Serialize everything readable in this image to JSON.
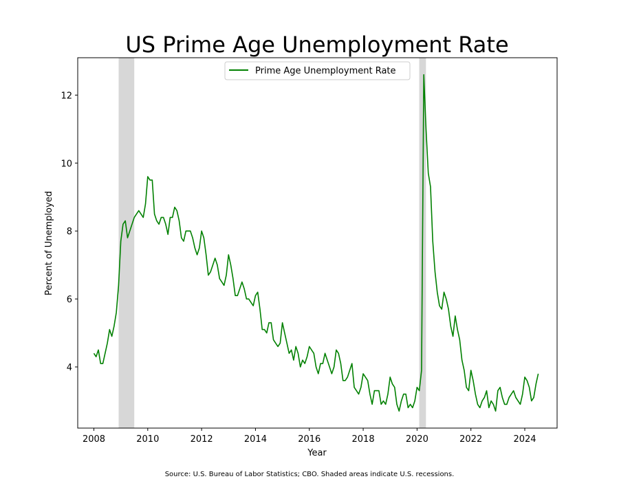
{
  "chart_data": {
    "type": "line",
    "title": "US Prime Age Unemployment Rate",
    "xlabel": "Year",
    "ylabel": "Percent of Unemployed",
    "source": "Source: U.S. Bureau of Labor Statistics; CBO. Shaded areas indicate U.S. recessions.",
    "xlim": [
      2007.4,
      2025.2
    ],
    "ylim": [
      2.2,
      13.1
    ],
    "xticks": [
      2008,
      2010,
      2012,
      2014,
      2016,
      2018,
      2020,
      2022,
      2024
    ],
    "yticks": [
      4,
      6,
      8,
      10,
      12
    ],
    "grid": false,
    "legend_position": "top-center",
    "line_color": "#008000",
    "recession_color": "#d3d3d3",
    "recessions": [
      [
        2008.92,
        2009.5
      ],
      [
        2020.08,
        2020.33
      ]
    ],
    "series": [
      {
        "name": "Prime Age Unemployment Rate",
        "x": [
          2008.0,
          2008.083,
          2008.167,
          2008.25,
          2008.333,
          2008.417,
          2008.5,
          2008.583,
          2008.667,
          2008.75,
          2008.833,
          2008.917,
          2009.0,
          2009.083,
          2009.167,
          2009.25,
          2009.333,
          2009.417,
          2009.5,
          2009.583,
          2009.667,
          2009.75,
          2009.833,
          2009.917,
          2010.0,
          2010.083,
          2010.167,
          2010.25,
          2010.333,
          2010.417,
          2010.5,
          2010.583,
          2010.667,
          2010.75,
          2010.833,
          2010.917,
          2011.0,
          2011.083,
          2011.167,
          2011.25,
          2011.333,
          2011.417,
          2011.5,
          2011.583,
          2011.667,
          2011.75,
          2011.833,
          2011.917,
          2012.0,
          2012.083,
          2012.167,
          2012.25,
          2012.333,
          2012.417,
          2012.5,
          2012.583,
          2012.667,
          2012.75,
          2012.833,
          2012.917,
          2013.0,
          2013.083,
          2013.167,
          2013.25,
          2013.333,
          2013.417,
          2013.5,
          2013.583,
          2013.667,
          2013.75,
          2013.833,
          2013.917,
          2014.0,
          2014.083,
          2014.167,
          2014.25,
          2014.333,
          2014.417,
          2014.5,
          2014.583,
          2014.667,
          2014.75,
          2014.833,
          2014.917,
          2015.0,
          2015.083,
          2015.167,
          2015.25,
          2015.333,
          2015.417,
          2015.5,
          2015.583,
          2015.667,
          2015.75,
          2015.833,
          2015.917,
          2016.0,
          2016.083,
          2016.167,
          2016.25,
          2016.333,
          2016.417,
          2016.5,
          2016.583,
          2016.667,
          2016.75,
          2016.833,
          2016.917,
          2017.0,
          2017.083,
          2017.167,
          2017.25,
          2017.333,
          2017.417,
          2017.5,
          2017.583,
          2017.667,
          2017.75,
          2017.833,
          2017.917,
          2018.0,
          2018.083,
          2018.167,
          2018.25,
          2018.333,
          2018.417,
          2018.5,
          2018.583,
          2018.667,
          2018.75,
          2018.833,
          2018.917,
          2019.0,
          2019.083,
          2019.167,
          2019.25,
          2019.333,
          2019.417,
          2019.5,
          2019.583,
          2019.667,
          2019.75,
          2019.833,
          2019.917,
          2020.0,
          2020.083,
          2020.167,
          2020.25,
          2020.333,
          2020.417,
          2020.5,
          2020.583,
          2020.667,
          2020.75,
          2020.833,
          2020.917,
          2021.0,
          2021.083,
          2021.167,
          2021.25,
          2021.333,
          2021.417,
          2021.5,
          2021.583,
          2021.667,
          2021.75,
          2021.833,
          2021.917,
          2022.0,
          2022.083,
          2022.167,
          2022.25,
          2022.333,
          2022.417,
          2022.5,
          2022.583,
          2022.667,
          2022.75,
          2022.833,
          2022.917,
          2023.0,
          2023.083,
          2023.167,
          2023.25,
          2023.333,
          2023.417,
          2023.5,
          2023.583,
          2023.667,
          2023.75,
          2023.833,
          2023.917,
          2024.0,
          2024.083,
          2024.167,
          2024.25,
          2024.333,
          2024.417,
          2024.5
        ],
        "values": [
          4.4,
          4.3,
          4.5,
          4.1,
          4.1,
          4.4,
          4.7,
          5.1,
          4.9,
          5.2,
          5.6,
          6.4,
          7.7,
          8.2,
          8.3,
          7.8,
          8.0,
          8.2,
          8.4,
          8.5,
          8.6,
          8.5,
          8.4,
          8.8,
          9.6,
          9.5,
          9.5,
          8.5,
          8.3,
          8.2,
          8.4,
          8.4,
          8.2,
          7.9,
          8.4,
          8.4,
          8.7,
          8.6,
          8.3,
          7.8,
          7.7,
          8.0,
          8.0,
          8.0,
          7.8,
          7.5,
          7.3,
          7.5,
          8.0,
          7.8,
          7.3,
          6.7,
          6.8,
          7.0,
          7.2,
          7.0,
          6.6,
          6.5,
          6.4,
          6.7,
          7.3,
          7.0,
          6.6,
          6.1,
          6.1,
          6.3,
          6.5,
          6.3,
          6.0,
          6.0,
          5.9,
          5.8,
          6.1,
          6.2,
          5.7,
          5.1,
          5.1,
          5.0,
          5.3,
          5.3,
          4.8,
          4.7,
          4.6,
          4.7,
          5.3,
          5.0,
          4.7,
          4.4,
          4.5,
          4.2,
          4.6,
          4.4,
          4.0,
          4.2,
          4.1,
          4.3,
          4.6,
          4.5,
          4.4,
          4.0,
          3.8,
          4.1,
          4.1,
          4.4,
          4.2,
          4.0,
          3.8,
          4.0,
          4.5,
          4.4,
          4.1,
          3.6,
          3.6,
          3.7,
          3.9,
          4.1,
          3.4,
          3.3,
          3.2,
          3.4,
          3.8,
          3.7,
          3.6,
          3.2,
          2.9,
          3.3,
          3.3,
          3.3,
          2.9,
          3.0,
          2.9,
          3.2,
          3.7,
          3.5,
          3.4,
          2.9,
          2.7,
          3.0,
          3.2,
          3.2,
          2.8,
          2.9,
          2.8,
          3.0,
          3.4,
          3.3,
          3.9,
          12.6,
          11.0,
          9.7,
          9.3,
          7.7,
          6.8,
          6.2,
          5.8,
          5.7,
          6.2,
          6.0,
          5.7,
          5.2,
          4.9,
          5.5,
          5.1,
          4.8,
          4.2,
          3.9,
          3.4,
          3.3,
          3.9,
          3.6,
          3.2,
          2.9,
          2.8,
          3.0,
          3.1,
          3.3,
          2.8,
          3.0,
          2.9,
          2.7,
          3.3,
          3.4,
          3.1,
          2.9,
          2.9,
          3.1,
          3.2,
          3.3,
          3.1,
          3.0,
          2.9,
          3.2,
          3.7,
          3.6,
          3.4,
          3.0,
          3.1,
          3.5,
          3.8
        ]
      }
    ]
  }
}
